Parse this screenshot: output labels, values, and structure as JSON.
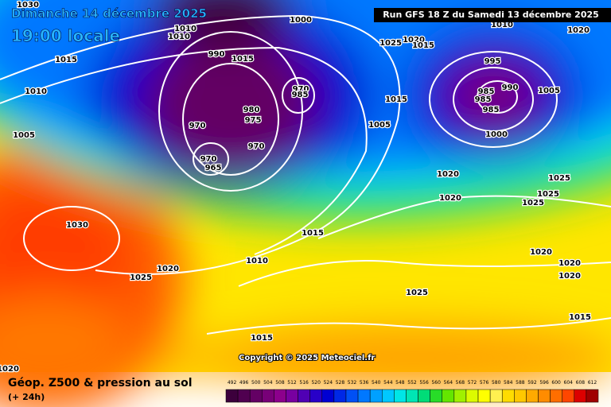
{
  "header": {
    "date": "Dimanche 14 décembre 2025",
    "time": "19:00 locale",
    "run": "Run GFS 18 Z du Samedi 13 décembre 2025"
  },
  "copyright": "Copyright © 2025 Meteociel.fr",
  "footer": {
    "title": "Géop. Z500 & pression au sol",
    "lead": "(+ 24h)"
  },
  "legend": {
    "labels": [
      492,
      496,
      500,
      504,
      508,
      512,
      516,
      520,
      524,
      528,
      532,
      536,
      540,
      544,
      548,
      552,
      556,
      560,
      564,
      568,
      572,
      576,
      580,
      584,
      588,
      592,
      596,
      600,
      604,
      608,
      612
    ],
    "colors": [
      "#3c003c",
      "#500050",
      "#640064",
      "#780078",
      "#8c008c",
      "#7800a0",
      "#5000b4",
      "#2800c8",
      "#0000d2",
      "#0028e6",
      "#0050f5",
      "#0078ff",
      "#00a0ff",
      "#00c8ff",
      "#00e6e6",
      "#00e6b4",
      "#00dc78",
      "#28dc28",
      "#64e600",
      "#a0f000",
      "#dcfa00",
      "#ffff00",
      "#fff050",
      "#ffdc00",
      "#ffc800",
      "#ffaa00",
      "#ff8c00",
      "#ff6e00",
      "#ff4600",
      "#dc0000",
      "#a00000"
    ]
  },
  "isobars": [
    1030,
    1010,
    1010,
    1015,
    990,
    1015,
    1010,
    1005,
    1000,
    970,
    975,
    980,
    970,
    985,
    970,
    970,
    965,
    1015,
    1005,
    1025,
    1020,
    1015,
    995,
    985,
    990,
    985,
    985,
    1000,
    1005,
    1020,
    1020,
    1025,
    1025,
    1025,
    1030,
    1015,
    1010,
    1020,
    1025,
    1020,
    1020,
    1020,
    1025,
    1015,
    1015,
    1020,
    1010,
    1020
  ]
}
